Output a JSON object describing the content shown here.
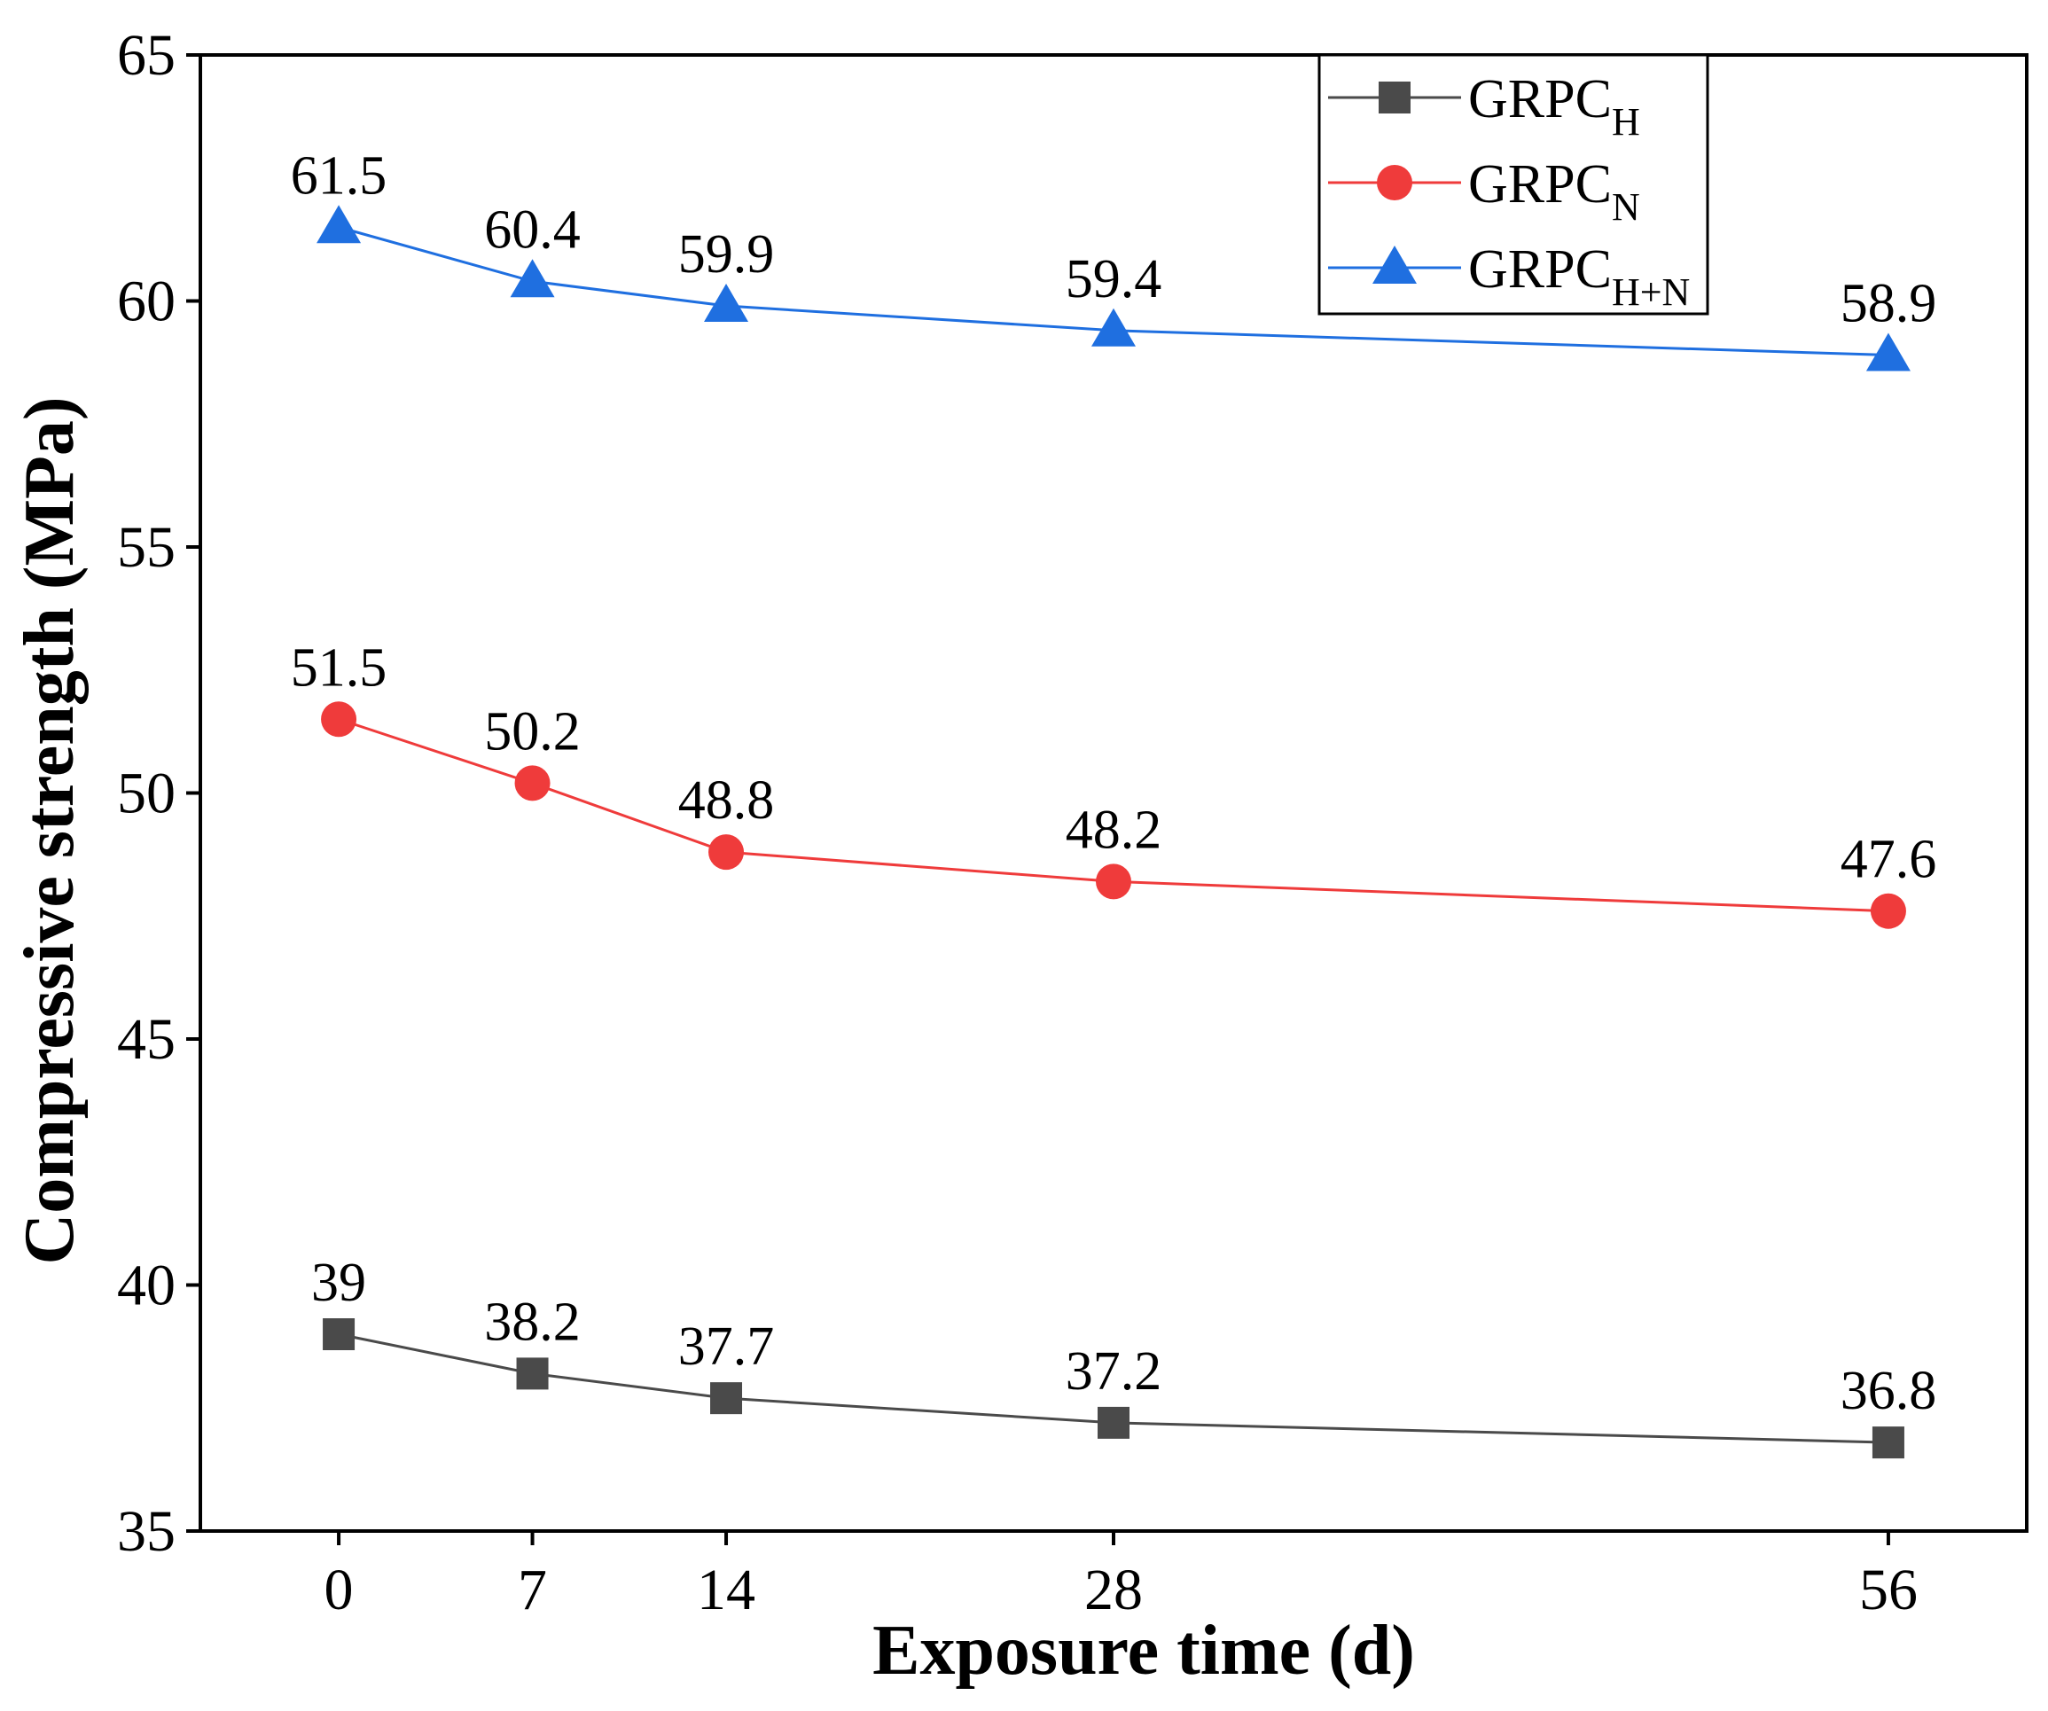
{
  "chart_data": {
    "type": "line",
    "title": "",
    "xlabel": "Exposure time (d)",
    "ylabel": "Compressive strength (MPa)",
    "x": [
      0,
      7,
      14,
      28,
      56
    ],
    "x_tick_labels": [
      "0",
      "7",
      "14",
      "28",
      "56"
    ],
    "xlim": [
      -5,
      61
    ],
    "ylim": [
      35,
      65
    ],
    "y_ticks": [
      35,
      40,
      45,
      50,
      55,
      60,
      65
    ],
    "grid": false,
    "legend_position": "top-right",
    "series": [
      {
        "name": "GRPC_H",
        "legend_base": "GRPC",
        "legend_sub": "H",
        "marker": "square",
        "color": "#4a4a4a",
        "values": [
          39,
          38.2,
          37.7,
          37.2,
          36.8
        ],
        "labels": [
          "39",
          "38.2",
          "37.7",
          "37.2",
          "36.8"
        ]
      },
      {
        "name": "GRPC_N",
        "legend_base": "GRPC",
        "legend_sub": "N",
        "marker": "circle",
        "color": "#ef3b3b",
        "values": [
          51.5,
          50.2,
          48.8,
          48.2,
          47.6
        ],
        "labels": [
          "51.5",
          "50.2",
          "48.8",
          "48.2",
          "47.6"
        ]
      },
      {
        "name": "GRPC_H+N",
        "legend_base": "GRPC",
        "legend_sub": "H+N",
        "marker": "triangle",
        "color": "#1f6fe0",
        "values": [
          61.5,
          60.4,
          59.9,
          59.4,
          58.9
        ],
        "labels": [
          "61.5",
          "60.4",
          "59.9",
          "59.4",
          "58.9"
        ]
      }
    ]
  }
}
